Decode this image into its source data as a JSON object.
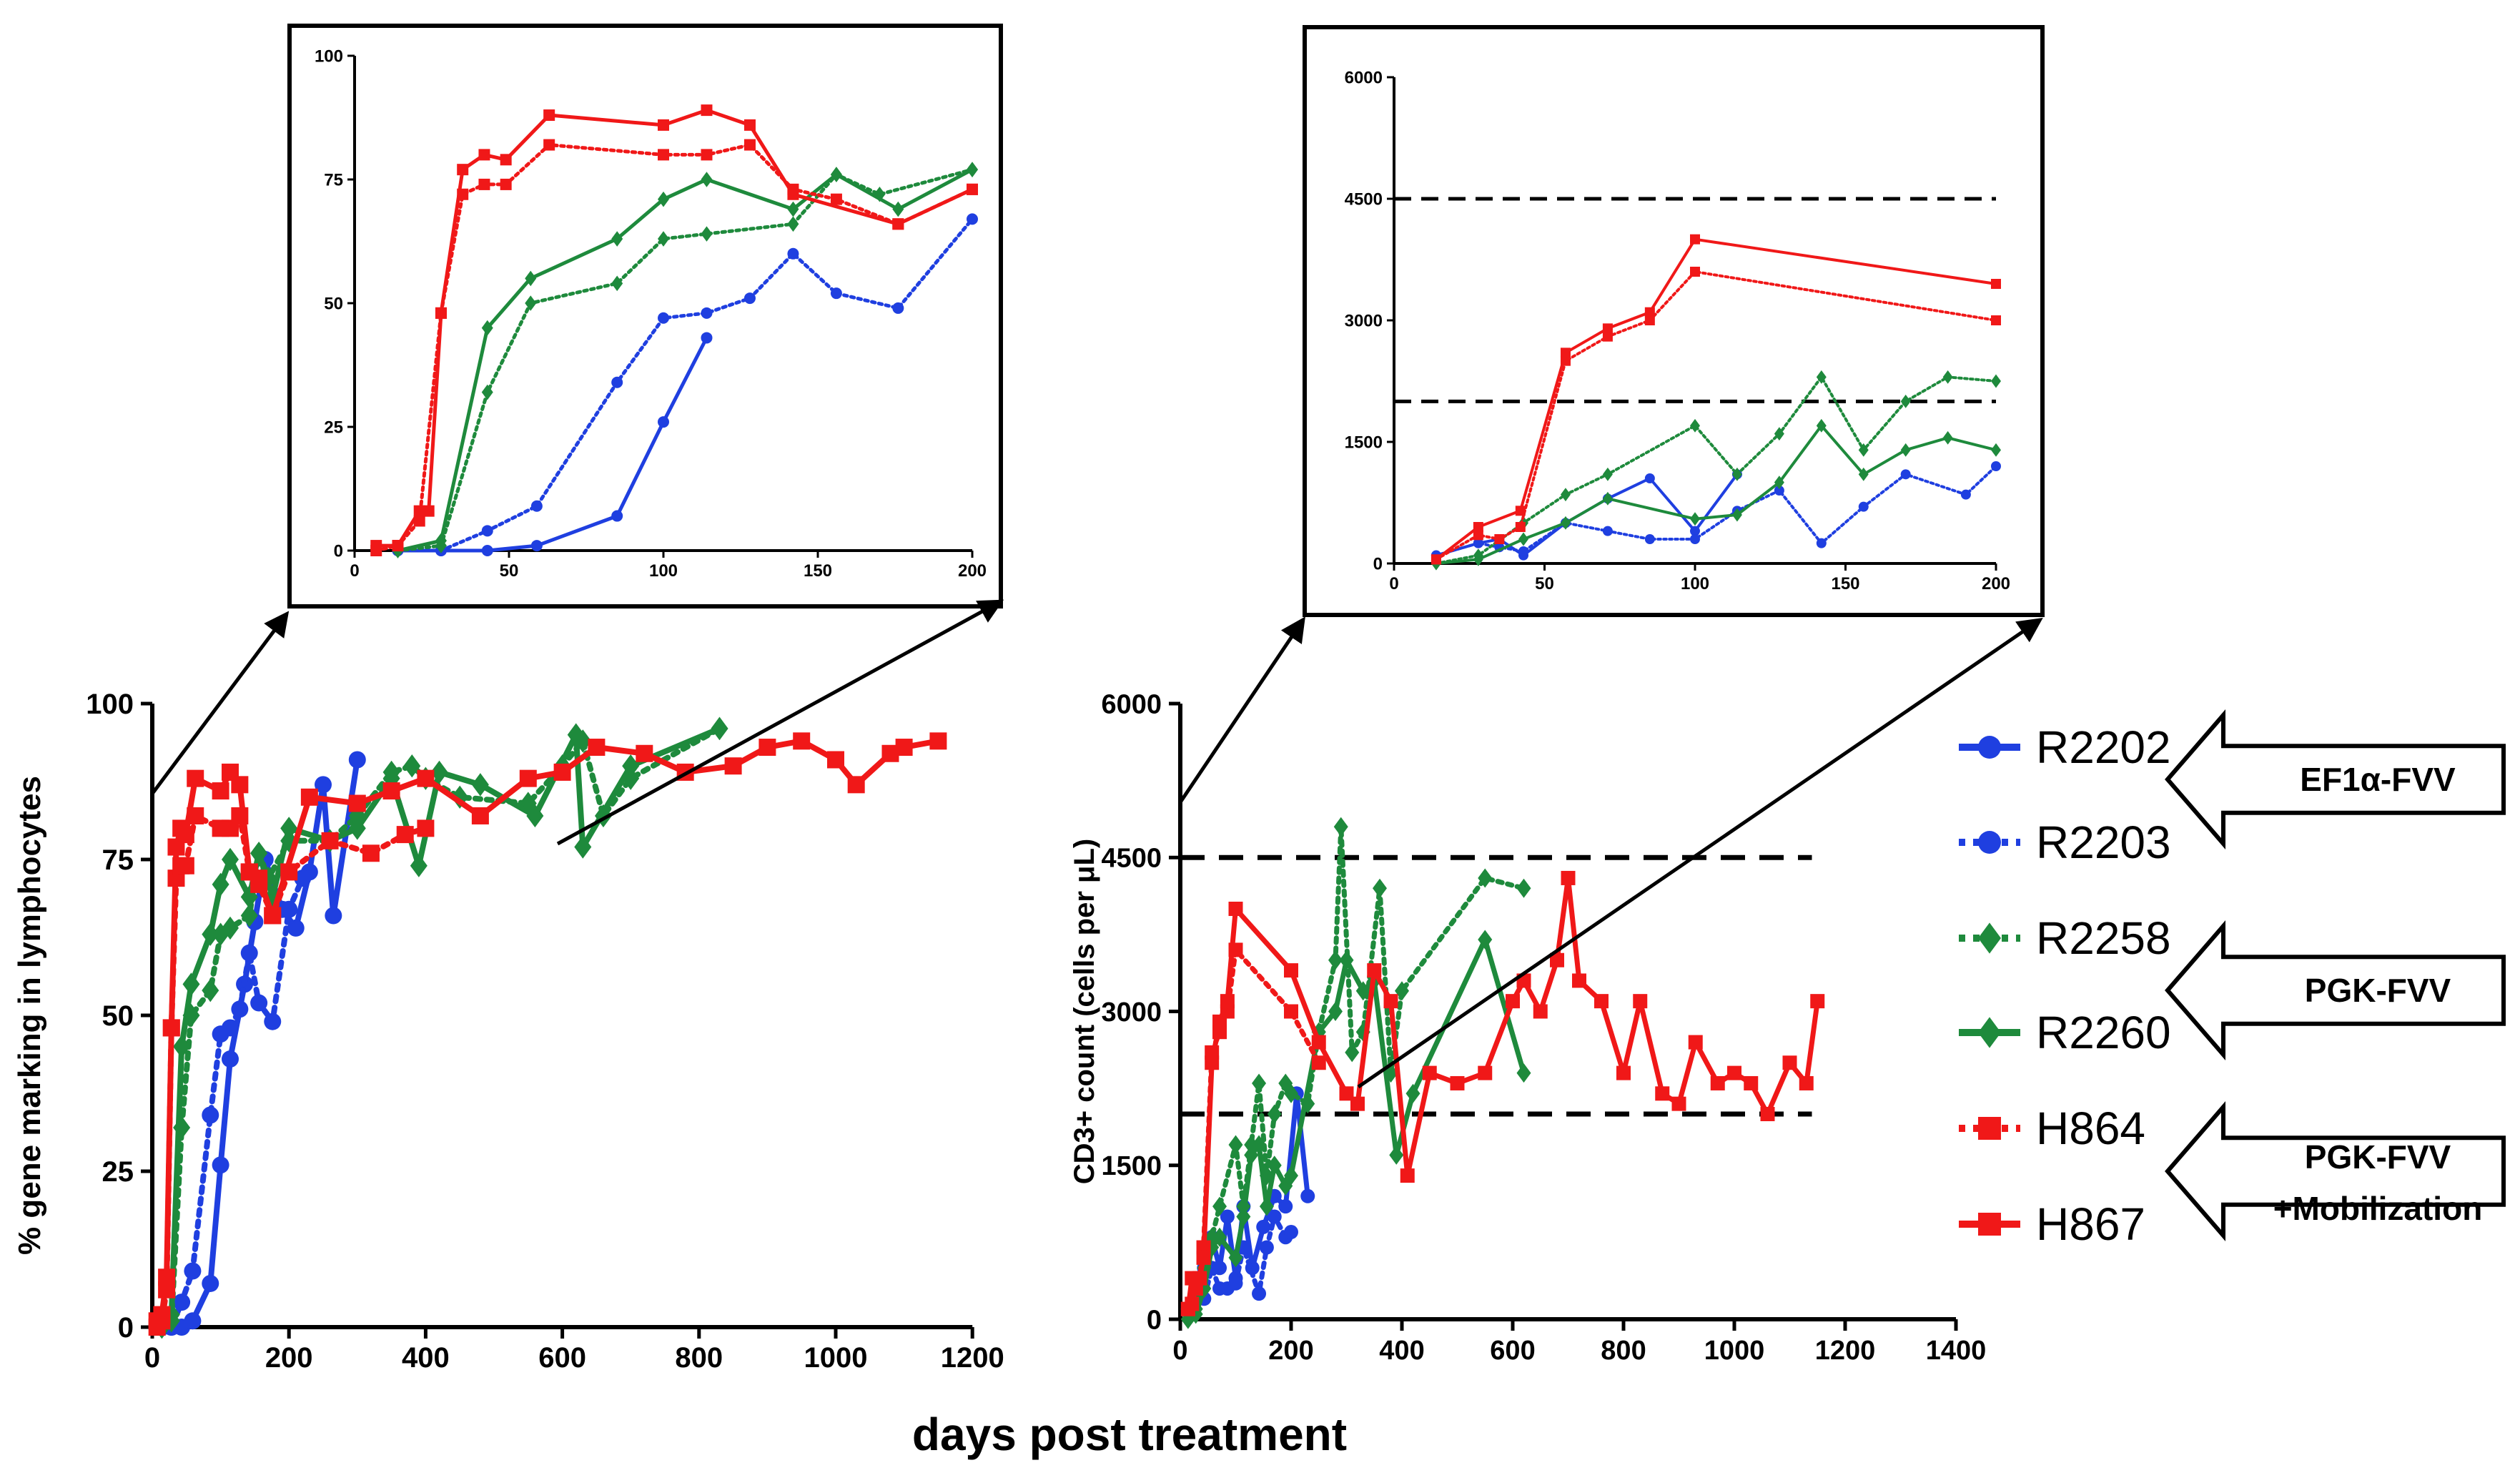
{
  "colors": {
    "R2202": "#1f3fe0",
    "R2203": "#1f3fe0",
    "R2258": "#1e8a3c",
    "R2260": "#1e8a3c",
    "H864": "#f01818",
    "H867": "#f01818"
  },
  "xlabel": "days post treatment",
  "legend": {
    "entries": [
      {
        "id": "R2202",
        "label": "R2202",
        "style": "solid",
        "marker": "circle"
      },
      {
        "id": "R2203",
        "label": "R2203",
        "style": "dotted",
        "marker": "circle"
      },
      {
        "id": "R2258",
        "label": "R2258",
        "style": "dotted",
        "marker": "diamond"
      },
      {
        "id": "R2260",
        "label": "R2260",
        "style": "solid",
        "marker": "diamond"
      },
      {
        "id": "H864",
        "label": "H864",
        "style": "dotted",
        "marker": "square"
      },
      {
        "id": "H867",
        "label": "H867",
        "style": "solid",
        "marker": "square"
      }
    ],
    "groups": [
      {
        "label": "EF1α-FVV"
      },
      {
        "label": "PGK-FVV"
      },
      {
        "label": "PGK-FVV",
        "label2": "+Mobilization"
      }
    ]
  },
  "chart_data": [
    {
      "id": "left_main",
      "type": "line",
      "title": "",
      "xlabel": "days post treatment",
      "ylabel": "% gene marking in lymphocytes",
      "xlim": [
        0,
        1250
      ],
      "ylim": [
        0,
        100
      ],
      "xticks": [
        "0",
        "200",
        "400",
        "600",
        "800",
        "1000",
        "1200"
      ],
      "yticks": [
        "0",
        "25",
        "50",
        "75",
        "100"
      ],
      "series": [
        {
          "name": "R2202",
          "x": [
            14,
            28,
            43,
            59,
            85,
            100,
            114,
            135,
            150,
            165,
            190,
            210,
            230,
            250,
            265,
            300
          ],
          "y": [
            0,
            0,
            0,
            1,
            7,
            26,
            43,
            55,
            65,
            75,
            67,
            64,
            73,
            87,
            66,
            91
          ]
        },
        {
          "name": "R2203",
          "x": [
            14,
            28,
            43,
            59,
            85,
            100,
            114,
            128,
            142,
            156,
            176,
            200,
            220
          ],
          "y": [
            0,
            0,
            4,
            9,
            34,
            47,
            48,
            51,
            60,
            52,
            49,
            67,
            72
          ]
        },
        {
          "name": "R2258",
          "x": [
            14,
            28,
            43,
            57,
            85,
            100,
            114,
            142,
            156,
            170,
            200,
            260,
            300,
            350,
            380,
            400,
            450,
            550,
            600,
            630,
            660,
            700,
            830
          ],
          "y": [
            0,
            1,
            32,
            50,
            54,
            63,
            64,
            66,
            76,
            72,
            78,
            78,
            82,
            89,
            90,
            88,
            85,
            84,
            90,
            94,
            82,
            88,
            96
          ]
        },
        {
          "name": "R2260",
          "x": [
            14,
            28,
            43,
            57,
            85,
            100,
            114,
            142,
            156,
            176,
            200,
            260,
            300,
            350,
            390,
            420,
            480,
            560,
            620,
            630,
            700,
            830
          ],
          "y": [
            0,
            2,
            45,
            55,
            63,
            71,
            75,
            69,
            76,
            69,
            80,
            78,
            80,
            88,
            74,
            89,
            87,
            82,
            95,
            77,
            90,
            96
          ]
        },
        {
          "name": "H864",
          "x": [
            7,
            14,
            21,
            28,
            35,
            42,
            49,
            63,
            100,
            114,
            128,
            142,
            156,
            176,
            200,
            260,
            320,
            370,
            400
          ],
          "y": [
            0,
            1,
            6,
            48,
            72,
            74,
            74,
            82,
            80,
            80,
            82,
            73,
            71,
            66,
            73,
            78,
            76,
            79,
            80
          ]
        },
        {
          "name": "H867",
          "x": [
            7,
            14,
            21,
            28,
            35,
            42,
            49,
            63,
            100,
            114,
            128,
            142,
            156,
            176,
            230,
            300,
            350,
            400,
            480,
            550,
            600,
            650,
            720,
            780,
            850,
            900,
            950,
            1000,
            1030,
            1080,
            1100,
            1150
          ],
          "y": [
            1,
            2,
            8,
            48,
            77,
            80,
            79,
            88,
            86,
            89,
            87,
            73,
            72,
            66,
            85,
            84,
            86,
            88,
            82,
            88,
            89,
            93,
            92,
            89,
            90,
            93,
            94,
            91,
            87,
            92,
            93,
            94
          ]
        }
      ]
    },
    {
      "id": "left_inset",
      "type": "line",
      "title": "",
      "xlim": [
        0,
        200
      ],
      "ylim": [
        0,
        100
      ],
      "xticks": [
        "0",
        "50",
        "100",
        "150",
        "200"
      ],
      "yticks": [
        "0",
        "25",
        "50",
        "75",
        "100"
      ],
      "series": [
        {
          "name": "R2202",
          "x": [
            14,
            28,
            43,
            59,
            85,
            100,
            114
          ],
          "y": [
            0,
            0,
            0,
            1,
            7,
            26,
            43
          ]
        },
        {
          "name": "R2203",
          "x": [
            14,
            28,
            43,
            59,
            85,
            100,
            114,
            128,
            142,
            156,
            176,
            200
          ],
          "y": [
            0,
            0,
            4,
            9,
            34,
            47,
            48,
            51,
            60,
            52,
            49,
            67
          ]
        },
        {
          "name": "R2258",
          "x": [
            14,
            28,
            43,
            57,
            85,
            100,
            114,
            142,
            156,
            170,
            200
          ],
          "y": [
            0,
            1,
            32,
            50,
            54,
            63,
            64,
            66,
            76,
            72,
            77
          ]
        },
        {
          "name": "R2260",
          "x": [
            14,
            28,
            43,
            57,
            85,
            100,
            114,
            142,
            156,
            176,
            200
          ],
          "y": [
            0,
            2,
            45,
            55,
            63,
            71,
            75,
            69,
            76,
            69,
            77
          ]
        },
        {
          "name": "H864",
          "x": [
            7,
            14,
            21,
            28,
            35,
            42,
            49,
            63,
            100,
            114,
            128,
            142,
            156,
            176,
            200
          ],
          "y": [
            0,
            1,
            6,
            48,
            72,
            74,
            74,
            82,
            80,
            80,
            82,
            73,
            71,
            66,
            73
          ]
        },
        {
          "name": "H867",
          "x": [
            7,
            14,
            21,
            24,
            28,
            35,
            42,
            49,
            63,
            100,
            114,
            128,
            142,
            176,
            200
          ],
          "y": [
            1,
            1,
            8,
            8,
            48,
            77,
            80,
            79,
            88,
            86,
            89,
            86,
            72,
            66,
            73
          ]
        }
      ]
    },
    {
      "id": "right_main",
      "type": "line",
      "title": "",
      "xlabel": "days post treatment",
      "ylabel": "CD3+ count (cells per μL)",
      "xlim": [
        0,
        1400
      ],
      "ylim": [
        0,
        6000
      ],
      "xticks": [
        "0",
        "200",
        "400",
        "600",
        "800",
        "1000",
        "1200",
        "1400"
      ],
      "yticks": [
        "0",
        "1500",
        "3000",
        "4500",
        "6000"
      ],
      "reference_lines": [
        4500,
        2000
      ],
      "series": [
        {
          "name": "R2202",
          "x": [
            14,
            28,
            43,
            57,
            71,
            85,
            100,
            114,
            130,
            150,
            170,
            190,
            210,
            230
          ],
          "y": [
            100,
            300,
            500,
            800,
            500,
            1000,
            400,
            1100,
            500,
            900,
            1200,
            1100,
            2200,
            1200
          ]
        },
        {
          "name": "R2203",
          "x": [
            14,
            28,
            43,
            57,
            71,
            85,
            100,
            114,
            142,
            156,
            170,
            190,
            200
          ],
          "y": [
            100,
            250,
            200,
            500,
            300,
            300,
            350,
            700,
            250,
            700,
            1000,
            800,
            850
          ]
        },
        {
          "name": "R2258",
          "x": [
            14,
            28,
            43,
            57,
            71,
            100,
            114,
            128,
            142,
            156,
            170,
            190,
            200,
            230,
            250,
            280,
            290,
            310,
            330,
            360,
            380,
            400,
            550,
            620
          ],
          "y": [
            0,
            100,
            500,
            800,
            1100,
            1700,
            1100,
            1700,
            2300,
            1400,
            2000,
            2300,
            2200,
            2100,
            2800,
            3500,
            4800,
            2600,
            2800,
            4200,
            2400,
            3200,
            4300,
            4200
          ]
        },
        {
          "name": "R2260",
          "x": [
            14,
            28,
            43,
            57,
            71,
            100,
            114,
            128,
            142,
            156,
            170,
            190,
            200,
            250,
            280,
            300,
            330,
            350,
            390,
            420,
            550,
            620
          ],
          "y": [
            0,
            50,
            300,
            700,
            800,
            600,
            1000,
            1600,
            1700,
            1100,
            1500,
            1300,
            1400,
            2800,
            3000,
            3500,
            3200,
            3300,
            1600,
            2200,
            3700,
            2400
          ]
        },
        {
          "name": "H864",
          "x": [
            14,
            21,
            28,
            35,
            42,
            57,
            71,
            85,
            100,
            200,
            250
          ],
          "y": [
            100,
            150,
            300,
            400,
            700,
            2600,
            2800,
            3000,
            3600,
            3000,
            2500
          ]
        },
        {
          "name": "H867",
          "x": [
            14,
            21,
            28,
            35,
            42,
            57,
            71,
            85,
            100,
            200,
            250,
            300,
            320,
            350,
            380,
            410,
            450,
            500,
            550,
            600,
            620,
            650,
            680,
            700,
            720,
            760,
            800,
            830,
            870,
            900,
            930,
            970,
            1000,
            1030,
            1060,
            1100,
            1130,
            1150
          ],
          "y": [
            100,
            400,
            300,
            400,
            600,
            2500,
            2900,
            3100,
            4000,
            3400,
            2700,
            2200,
            2100,
            3400,
            3100,
            1400,
            2400,
            2300,
            2400,
            3100,
            3300,
            3000,
            3500,
            4300,
            3300,
            3100,
            2400,
            3100,
            2200,
            2100,
            2700,
            2300,
            2400,
            2300,
            2000,
            2500,
            2300,
            3100
          ]
        }
      ]
    },
    {
      "id": "right_inset",
      "type": "line",
      "title": "",
      "xlim": [
        0,
        200
      ],
      "ylim": [
        0,
        6000
      ],
      "xticks": [
        "0",
        "50",
        "100",
        "150",
        "200"
      ],
      "yticks": [
        "0",
        "1500",
        "3000",
        "4500",
        "6000"
      ],
      "reference_lines": [
        4500,
        2000
      ],
      "series": [
        {
          "name": "R2202",
          "x": [
            14,
            28,
            35,
            43,
            57,
            71,
            85,
            100,
            114
          ],
          "y": [
            100,
            250,
            300,
            100,
            500,
            800,
            1050,
            400,
            1100
          ]
        },
        {
          "name": "R2203",
          "x": [
            14,
            28,
            35,
            43,
            57,
            71,
            85,
            100,
            114,
            128,
            142,
            156,
            170,
            190,
            200
          ],
          "y": [
            100,
            250,
            200,
            150,
            500,
            400,
            300,
            300,
            650,
            900,
            250,
            700,
            1100,
            850,
            1200
          ]
        },
        {
          "name": "R2258",
          "x": [
            14,
            28,
            43,
            57,
            71,
            100,
            114,
            128,
            142,
            156,
            170,
            184,
            200
          ],
          "y": [
            0,
            100,
            500,
            850,
            1100,
            1700,
            1100,
            1600,
            2300,
            1400,
            2000,
            2300,
            2250
          ]
        },
        {
          "name": "R2260",
          "x": [
            14,
            28,
            43,
            57,
            71,
            100,
            114,
            128,
            142,
            156,
            170,
            184,
            200
          ],
          "y": [
            0,
            50,
            300,
            500,
            800,
            550,
            600,
            1000,
            1700,
            1100,
            1400,
            1550,
            1400
          ]
        },
        {
          "name": "H864",
          "x": [
            14,
            28,
            35,
            42,
            57,
            71,
            85,
            100,
            200
          ],
          "y": [
            50,
            350,
            300,
            450,
            2500,
            2800,
            3000,
            3600,
            3000
          ]
        },
        {
          "name": "H867",
          "x": [
            14,
            28,
            42,
            57,
            71,
            85,
            100,
            200
          ],
          "y": [
            50,
            450,
            650,
            2600,
            2900,
            3100,
            4000,
            3450
          ]
        }
      ]
    }
  ]
}
